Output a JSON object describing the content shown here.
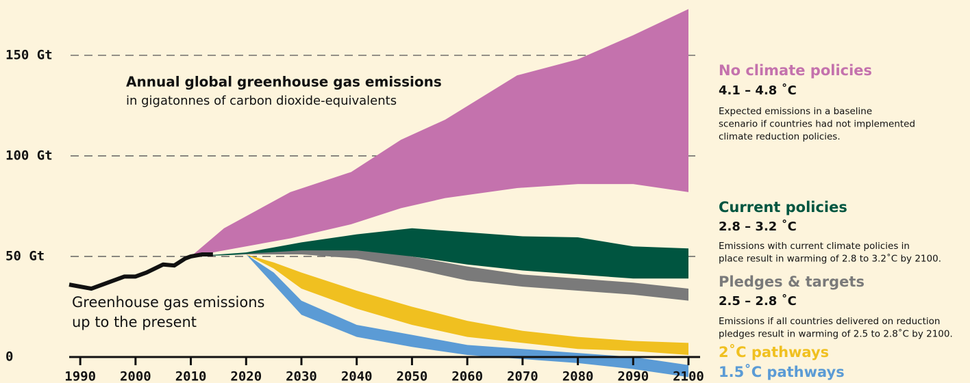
{
  "chart_data": {
    "type": "range-area",
    "title": "Annual global greenhouse gas emissions",
    "subtitle": "in gigatonnes of carbon dioxide-equivalents",
    "xlim": [
      1988,
      2100
    ],
    "xticks": [
      1990,
      2000,
      2010,
      2020,
      2030,
      2040,
      2050,
      2060,
      2070,
      2080,
      2090,
      2100
    ],
    "ylim": [
      0,
      177.5
    ],
    "yticks": [
      {
        "value": 0,
        "label": "0"
      },
      {
        "value": 50,
        "label": "50 Gt"
      },
      {
        "value": 100,
        "label": "100 Gt"
      },
      {
        "value": 150,
        "label": "150 Gt"
      }
    ],
    "grid": true,
    "history": {
      "label": [
        "Greenhouse gas emissions",
        "up to the present"
      ],
      "color": "#111111",
      "x": [
        1988,
        1992,
        1995,
        1998,
        2000,
        2002,
        2005,
        2007,
        2009,
        2010,
        2012,
        2014
      ],
      "values": [
        36,
        34,
        37,
        40,
        40,
        42,
        46,
        45.5,
        49,
        50,
        51,
        51
      ]
    },
    "series": [
      {
        "name": "No climate policies",
        "temperature": "4.1 – 4.8 ˚C",
        "description": [
          "Expected emissions in a baseline",
          "scenario if countries had not implemented",
          "climate reduction policies."
        ],
        "color": "#c472ad",
        "x": [
          2010,
          2016,
          2028,
          2039,
          2048,
          2056,
          2069,
          2080,
          2090,
          2100
        ],
        "high": [
          50,
          64,
          82,
          92,
          108,
          118,
          140,
          148,
          160,
          173
        ],
        "low": [
          50,
          53,
          59,
          66,
          74,
          79,
          84,
          86,
          86,
          82
        ]
      },
      {
        "name": "Current policies",
        "temperature": "2.8 – 3.2 ˚C",
        "description": [
          "Emissions with current climate policies in",
          "place result in warming of 2.8 to 3.2˚C by 2100."
        ],
        "color": "#005540",
        "x": [
          2010,
          2020,
          2030,
          2040,
          2050,
          2060,
          2070,
          2080,
          2090,
          2100
        ],
        "high": [
          50,
          52,
          57,
          61,
          64,
          62,
          60,
          59.5,
          55,
          54
        ],
        "low": [
          50,
          51,
          51,
          51,
          50,
          46,
          43,
          41,
          39,
          39
        ]
      },
      {
        "name": "Pledges & targets",
        "temperature": "2.5 – 2.8 ˚C",
        "description": [
          "Emissions if all countries delivered on reduction",
          "pledges result in warming of 2.5 to 2.8˚C by 2100."
        ],
        "color": "#7a7a7a",
        "x": [
          2018,
          2030,
          2040,
          2050,
          2060,
          2070,
          2080,
          2090,
          2100
        ],
        "high": [
          51,
          53,
          53,
          50,
          45,
          41,
          39,
          37,
          34
        ],
        "low": [
          51,
          51,
          49,
          44,
          38,
          35,
          33,
          31,
          28
        ]
      },
      {
        "name": "2˚C pathways",
        "color": "#f0c020",
        "x": [
          2020,
          2025,
          2030,
          2040,
          2050,
          2060,
          2070,
          2080,
          2090,
          2100
        ],
        "high": [
          51,
          47,
          42,
          33,
          25,
          18,
          13,
          10,
          8,
          7
        ],
        "low": [
          51,
          44,
          34,
          24,
          16,
          10,
          7,
          4,
          3,
          1
        ]
      },
      {
        "name": "1.5˚C pathways",
        "color": "#5b9bd5",
        "x": [
          2020,
          2025,
          2030,
          2040,
          2050,
          2060,
          2070,
          2080,
          2090,
          2100
        ],
        "high": [
          51,
          42,
          28,
          16,
          11,
          6,
          4,
          2,
          0,
          -4
        ],
        "low": [
          51,
          36,
          21,
          10,
          5,
          1,
          -1,
          -3,
          -6,
          -10
        ]
      }
    ]
  }
}
